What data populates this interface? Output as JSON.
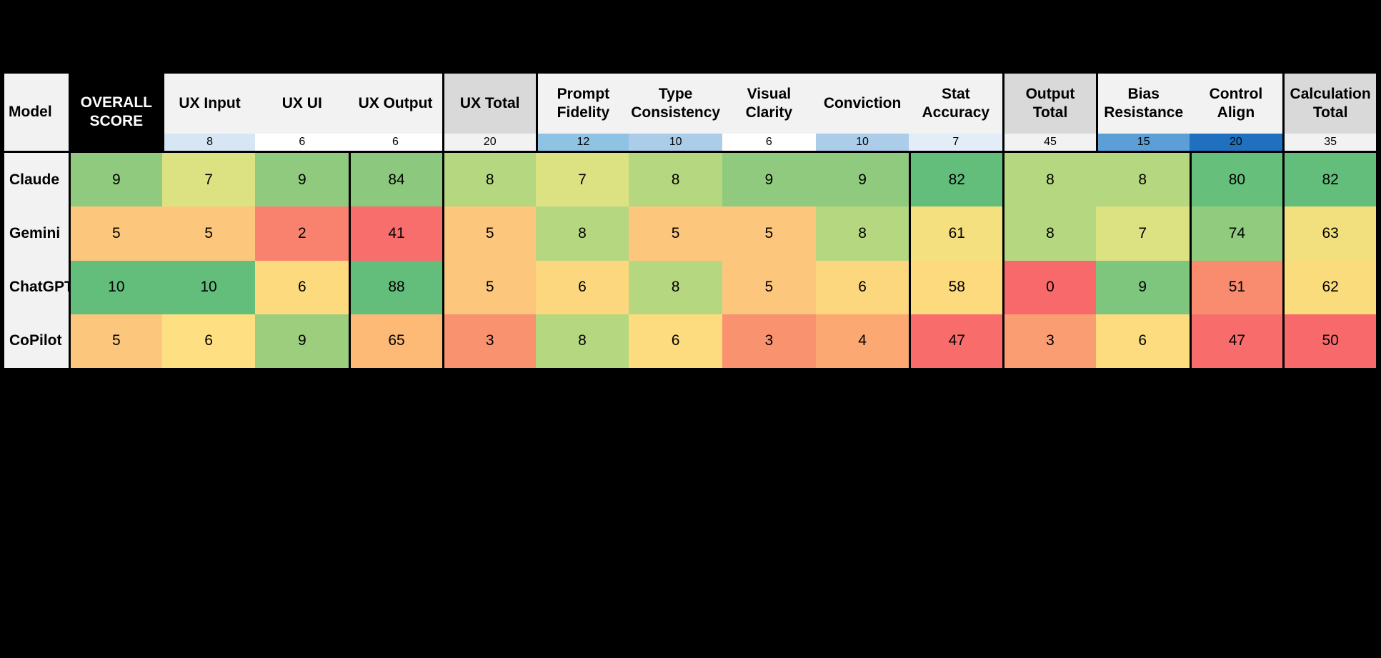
{
  "chart_data": {
    "type": "heatmap",
    "title": "",
    "row_header_label": "Model",
    "rows": [
      "Claude",
      "Gemini",
      "ChatGPT",
      "CoPilot"
    ],
    "columns": [
      "UX Input",
      "UX UI",
      "UX Output",
      "UX Total",
      "Prompt Fidelity",
      "Type Consistency",
      "Visual Clarity",
      "Conviction",
      "Stat Accuracy",
      "Output Total",
      "Bias Resistance",
      "Control Align",
      "Calculation Total",
      "OVERALL SCORE"
    ],
    "column_weights": [
      8,
      6,
      6,
      20,
      12,
      10,
      6,
      10,
      7,
      45,
      15,
      20,
      35,
      null
    ],
    "values": [
      [
        9,
        7,
        9,
        84,
        8,
        7,
        8,
        9,
        9,
        82,
        8,
        8,
        80,
        82
      ],
      [
        5,
        5,
        2,
        41,
        5,
        8,
        5,
        5,
        8,
        61,
        8,
        7,
        74,
        63
      ],
      [
        10,
        10,
        6,
        88,
        5,
        6,
        8,
        5,
        6,
        58,
        0,
        9,
        51,
        62
      ],
      [
        5,
        6,
        9,
        65,
        3,
        8,
        6,
        3,
        4,
        47,
        3,
        6,
        47,
        50
      ]
    ],
    "colormap": "red-yellow-green",
    "legend": "none",
    "grid": "section dividers only"
  },
  "colors": {
    "page_background": "#000000",
    "header_bg": "#F2F2F2",
    "total_header_bg": "#D9D9D9",
    "overall_header_bg": "#000000",
    "overall_header_text": "#FFFFFF",
    "scale_green_max": "#63BE7B",
    "scale_yellow_mid": "#FFEB84",
    "scale_red_min": "#F8696B"
  },
  "table": {
    "header": {
      "model": "Model",
      "columns": [
        {
          "label": "UX Input",
          "label_bg": "#F2F2F2",
          "weight": "8",
          "weight_bg": "#D7E6F4"
        },
        {
          "label": "UX UI",
          "label_bg": "#F2F2F2",
          "weight": "6",
          "weight_bg": "#FFFFFF"
        },
        {
          "label": "UX Output",
          "label_bg": "#F2F2F2",
          "weight": "6",
          "weight_bg": "#FFFFFF"
        },
        {
          "label": "UX Total",
          "label_bg": "#D9D9D9",
          "weight": "20",
          "weight_bg": "#F2F2F2"
        },
        {
          "label": "Prompt Fidelity",
          "label_bg": "#F2F2F2",
          "weight": "12",
          "weight_bg": "#8FC3E4"
        },
        {
          "label": "Type Consistency",
          "label_bg": "#F2F2F2",
          "weight": "10",
          "weight_bg": "#ABCDE9"
        },
        {
          "label": "Visual Clarity",
          "label_bg": "#F2F2F2",
          "weight": "6",
          "weight_bg": "#FFFFFF"
        },
        {
          "label": "Conviction",
          "label_bg": "#F2F2F2",
          "weight": "10",
          "weight_bg": "#ABCDE9"
        },
        {
          "label": "Stat Accuracy",
          "label_bg": "#F2F2F2",
          "weight": "7",
          "weight_bg": "#E2EDF8"
        },
        {
          "label": "Output Total",
          "label_bg": "#D9D9D9",
          "weight": "45",
          "weight_bg": "#F2F2F2"
        },
        {
          "label": "Bias Resistance",
          "label_bg": "#F2F2F2",
          "weight": "15",
          "weight_bg": "#5C9FD6"
        },
        {
          "label": "Control Align",
          "label_bg": "#F2F2F2",
          "weight": "20",
          "weight_bg": "#2070C0"
        },
        {
          "label": "Calculation Total",
          "label_bg": "#D9D9D9",
          "weight": "35",
          "weight_bg": "#F2F2F2"
        },
        {
          "label": "OVERALL SCORE",
          "label_bg": "#000000"
        }
      ]
    },
    "rows": [
      {
        "model": "Claude",
        "model_bg": "#F2F2F2",
        "cells": [
          {
            "v": "9",
            "bg": "#8FCA7E"
          },
          {
            "v": "7",
            "bg": "#DCE182"
          },
          {
            "v": "9",
            "bg": "#8FCA7E"
          },
          {
            "v": "84",
            "bg": "#8CC97E"
          },
          {
            "v": "8",
            "bg": "#B5D780"
          },
          {
            "v": "7",
            "bg": "#DCE182"
          },
          {
            "v": "8",
            "bg": "#B5D780"
          },
          {
            "v": "9",
            "bg": "#8FCA7E"
          },
          {
            "v": "9",
            "bg": "#8FCA7E"
          },
          {
            "v": "82",
            "bg": "#63BE7B"
          },
          {
            "v": "8",
            "bg": "#B5D780"
          },
          {
            "v": "8",
            "bg": "#B5D780"
          },
          {
            "v": "80",
            "bg": "#66C07C"
          },
          {
            "v": "82",
            "bg": "#63BE7B"
          }
        ]
      },
      {
        "model": "Gemini",
        "model_bg": "#F2F2F2",
        "cells": [
          {
            "v": "5",
            "bg": "#FCC67D"
          },
          {
            "v": "5",
            "bg": "#FCC67D"
          },
          {
            "v": "2",
            "bg": "#F9826E"
          },
          {
            "v": "41",
            "bg": "#F86E6C"
          },
          {
            "v": "5",
            "bg": "#FCC67D"
          },
          {
            "v": "8",
            "bg": "#B5D780"
          },
          {
            "v": "5",
            "bg": "#FCC67D"
          },
          {
            "v": "5",
            "bg": "#FCC67D"
          },
          {
            "v": "8",
            "bg": "#B5D780"
          },
          {
            "v": "61",
            "bg": "#F4E07E"
          },
          {
            "v": "8",
            "bg": "#B5D780"
          },
          {
            "v": "7",
            "bg": "#DCE182"
          },
          {
            "v": "74",
            "bg": "#90CB7E"
          },
          {
            "v": "63",
            "bg": "#F2DF7D"
          }
        ]
      },
      {
        "model": "ChatGPT",
        "model_bg": "#F2F2F2",
        "cells": [
          {
            "v": "10",
            "bg": "#63BE7B"
          },
          {
            "v": "10",
            "bg": "#63BE7B"
          },
          {
            "v": "6",
            "bg": "#FEDA7F"
          },
          {
            "v": "88",
            "bg": "#63BE7B"
          },
          {
            "v": "5",
            "bg": "#FCC67D"
          },
          {
            "v": "6",
            "bg": "#FDD77E"
          },
          {
            "v": "8",
            "bg": "#B5D780"
          },
          {
            "v": "5",
            "bg": "#FCC67D"
          },
          {
            "v": "6",
            "bg": "#FDD77E"
          },
          {
            "v": "58",
            "bg": "#FCDA7D"
          },
          {
            "v": "0",
            "bg": "#F8696B"
          },
          {
            "v": "9",
            "bg": "#7EC67D"
          },
          {
            "v": "51",
            "bg": "#F98B6F"
          },
          {
            "v": "62",
            "bg": "#FADC7D"
          }
        ]
      },
      {
        "model": "CoPilot",
        "model_bg": "#F2F2F2",
        "cells": [
          {
            "v": "5",
            "bg": "#FCC67D"
          },
          {
            "v": "6",
            "bg": "#FEDF82"
          },
          {
            "v": "9",
            "bg": "#9CCE7E"
          },
          {
            "v": "65",
            "bg": "#FCBA76"
          },
          {
            "v": "3",
            "bg": "#F9926F"
          },
          {
            "v": "8",
            "bg": "#B5D780"
          },
          {
            "v": "6",
            "bg": "#FDDC80"
          },
          {
            "v": "3",
            "bg": "#F9926F"
          },
          {
            "v": "4",
            "bg": "#FBA873"
          },
          {
            "v": "47",
            "bg": "#F86D6C"
          },
          {
            "v": "3",
            "bg": "#FA9D72"
          },
          {
            "v": "6",
            "bg": "#FDDC80"
          },
          {
            "v": "47",
            "bg": "#F86D6C"
          },
          {
            "v": "50",
            "bg": "#F8696B"
          }
        ]
      }
    ]
  }
}
